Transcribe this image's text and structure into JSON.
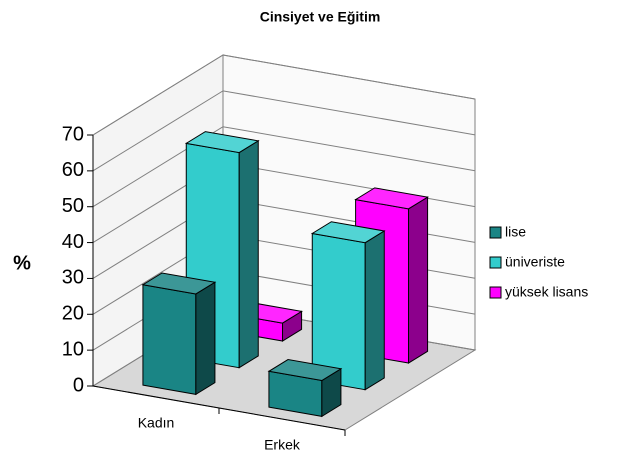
{
  "chart_data": {
    "type": "bar3d",
    "title": "Cinsiyet ve Eğitim",
    "y_label": "%",
    "categories": [
      "Kadın",
      "Erkek"
    ],
    "series": [
      {
        "name": "lise",
        "color": "#1a8585",
        "values": [
          28,
          10
        ]
      },
      {
        "name": "üniveriste",
        "color": "#33cccc",
        "values": [
          60,
          41
        ]
      },
      {
        "name": "yüksek lisans",
        "color": "#ff00ff",
        "values": [
          5,
          43
        ]
      }
    ],
    "ylim": [
      0,
      70
    ],
    "yticks": [
      0,
      10,
      20,
      30,
      40,
      50,
      60,
      70
    ],
    "grid": true,
    "legend": "right"
  }
}
